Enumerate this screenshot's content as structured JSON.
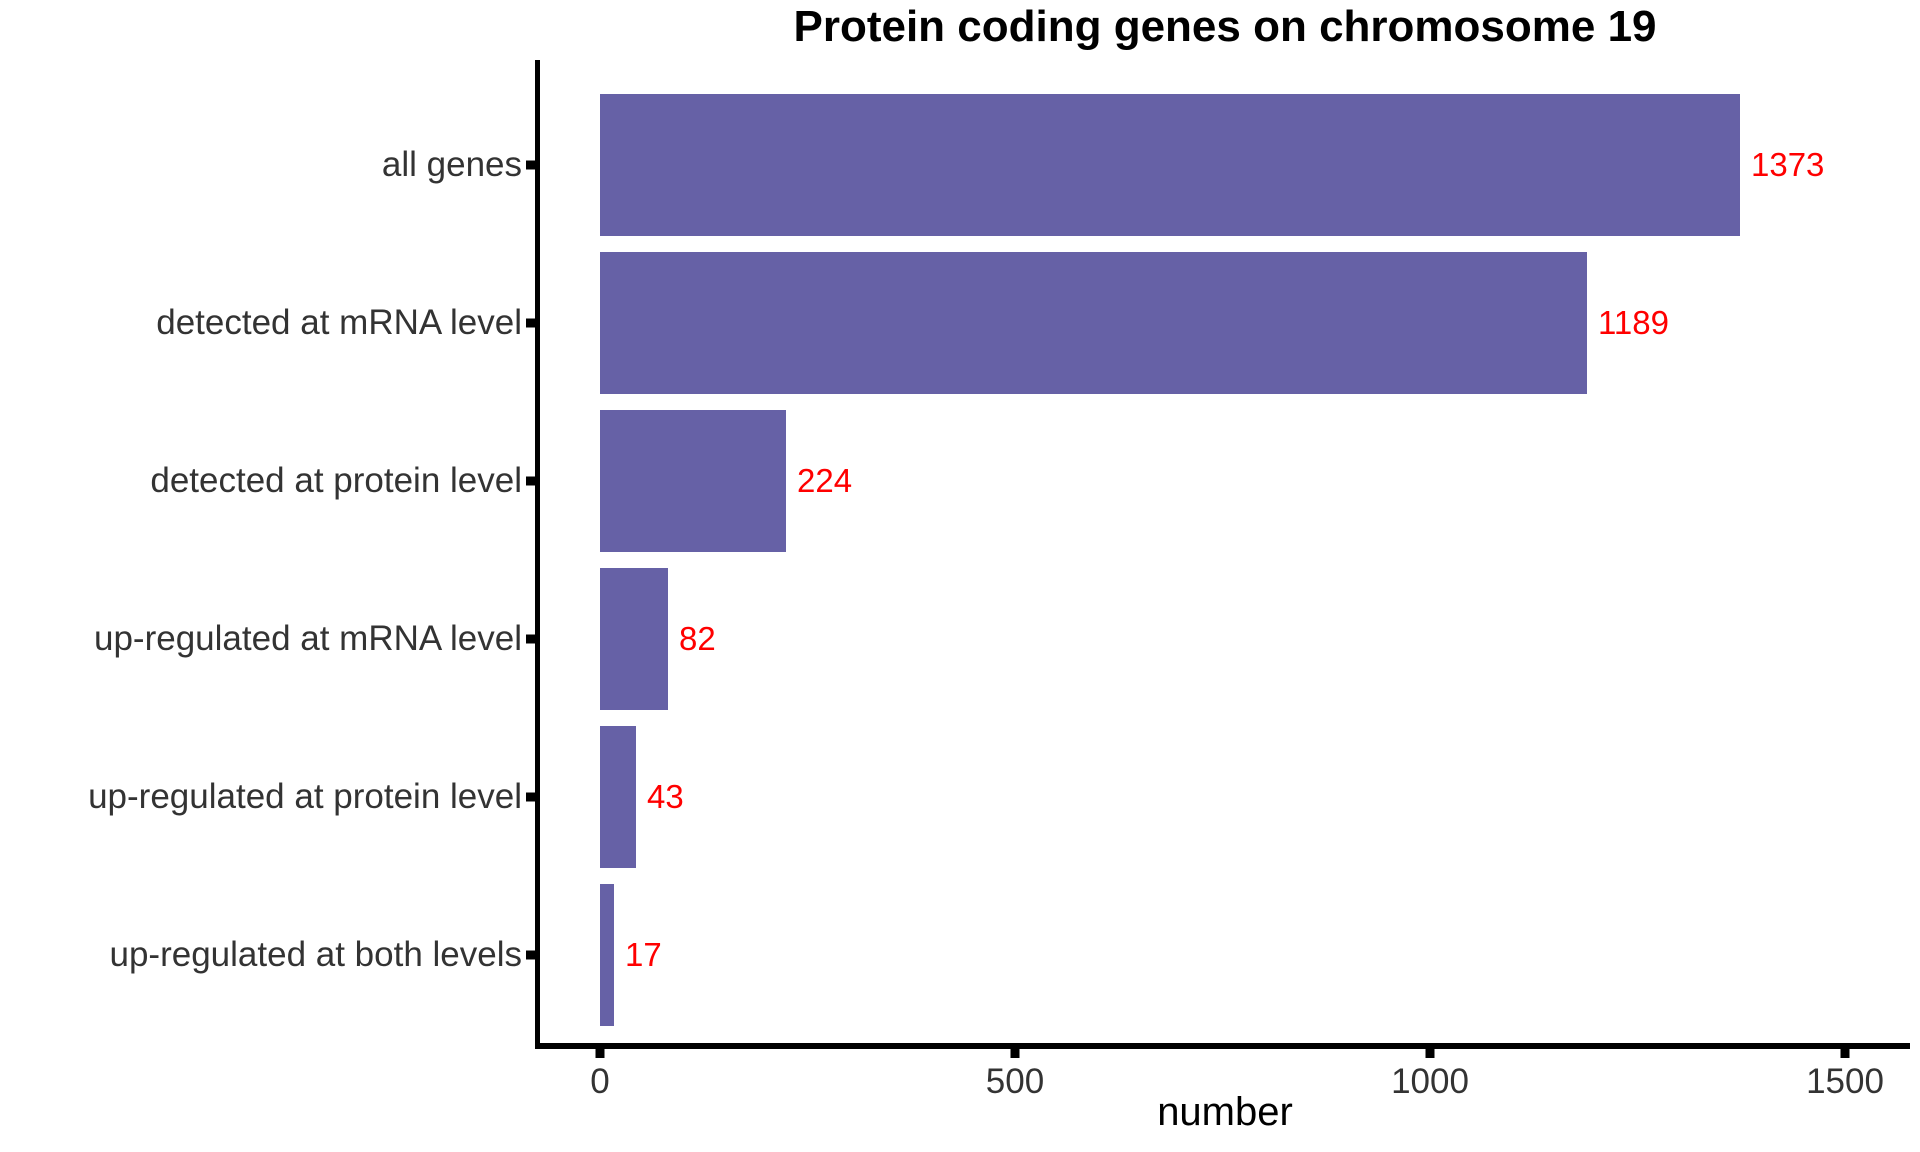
{
  "title": "Protein coding genes on chromosome 19",
  "chart_data": {
    "type": "bar",
    "orientation": "horizontal",
    "title": "Protein coding genes on chromosome 19",
    "xlabel": "number",
    "ylabel": "",
    "categories": [
      "all genes",
      "detected at mRNA level",
      "detected at protein level",
      "up-regulated at mRNA level",
      "up-regulated at protein level",
      "up-regulated at both levels"
    ],
    "values": [
      1373,
      1189,
      224,
      82,
      43,
      17
    ],
    "data_labels": [
      "1373",
      "1189",
      "224",
      "82",
      "43",
      "17"
    ],
    "x_ticks": [
      0,
      500,
      1000,
      1500
    ],
    "xlim": [
      0,
      1580
    ],
    "grid": "off",
    "legend": "none",
    "bar_color": "#6661A6",
    "data_label_color": "#FF0000",
    "axis_text_color": "#333333",
    "axis_line_color": "#000000"
  }
}
